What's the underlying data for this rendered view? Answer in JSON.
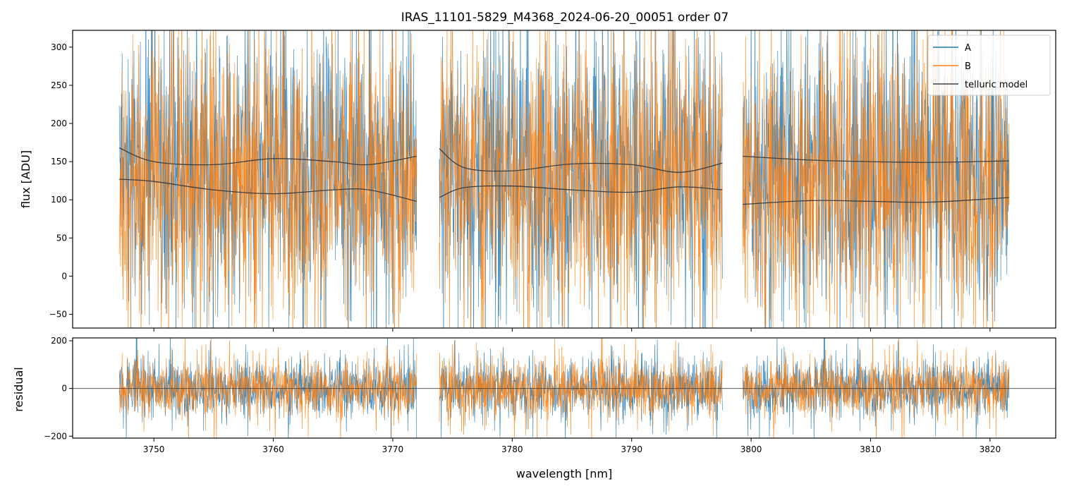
{
  "chart_data": [
    {
      "type": "line",
      "title": "IRAS_11101-5829_M4368_2024-06-20_00051  order 07",
      "xlabel": "",
      "ylabel": "flux [ADU]",
      "xlim": [
        3743.2,
        3825.5
      ],
      "ylim": [
        -68,
        322
      ],
      "yticks": [
        -50,
        0,
        50,
        100,
        150,
        200,
        250,
        300
      ],
      "xticks": [
        3750,
        3760,
        3770,
        3780,
        3790,
        3800,
        3810,
        3820
      ],
      "xticklabels_shown": false,
      "grid": false,
      "legend": {
        "placement": "top-right",
        "entries": [
          "A",
          "B",
          "telluric model"
        ]
      },
      "segments": [
        {
          "x_start": 3747.1,
          "x_end": 3772.0
        },
        {
          "x_start": 3773.9,
          "x_end": 3797.6
        },
        {
          "x_start": 3799.3,
          "x_end": 3821.6
        }
      ],
      "series": [
        {
          "name": "A",
          "color": "#1f77b4",
          "description_level": 140,
          "scatter_range": [
            -70,
            320
          ]
        },
        {
          "name": "B",
          "color": "#ff7f0e",
          "description_level": 130,
          "scatter_range": [
            -70,
            320
          ]
        },
        {
          "name": "telluric model",
          "color": "#404040",
          "curves": [
            {
              "x": [
                3747.1,
                3750,
                3755,
                3760,
                3765,
                3768,
                3772.0
              ],
              "y": [
                168,
                150,
                146,
                154,
                150,
                146,
                157
              ]
            },
            {
              "x": [
                3747.1,
                3750,
                3755,
                3760,
                3765,
                3768,
                3772.0
              ],
              "y": [
                127,
                124,
                113,
                108,
                113,
                113,
                98
              ]
            },
            {
              "x": [
                3773.9,
                3776,
                3780,
                3785,
                3790,
                3794,
                3797.6
              ],
              "y": [
                167,
                142,
                138,
                147,
                146,
                136,
                148
              ]
            },
            {
              "x": [
                3773.9,
                3776,
                3780,
                3785,
                3790,
                3794,
                3797.6
              ],
              "y": [
                103,
                116,
                118,
                113,
                110,
                117,
                113
              ]
            },
            {
              "x": [
                3799.3,
                3805,
                3810,
                3815,
                3821.6
              ],
              "y": [
                157,
                152,
                150,
                149,
                151
              ]
            },
            {
              "x": [
                3799.3,
                3805,
                3810,
                3815,
                3821.6
              ],
              "y": [
                94,
                99,
                98,
                97,
                103
              ]
            }
          ]
        }
      ]
    },
    {
      "type": "line",
      "title": "",
      "xlabel": "wavelength [nm]",
      "ylabel": "residual",
      "xlim": [
        3743.2,
        3825.5
      ],
      "ylim": [
        -208,
        212
      ],
      "yticks": [
        -200,
        0,
        200
      ],
      "xticks": [
        3750,
        3760,
        3770,
        3780,
        3790,
        3800,
        3810,
        3820
      ],
      "xticklabels": [
        "3750",
        "3760",
        "3770",
        "3780",
        "3790",
        "3800",
        "3810",
        "3820"
      ],
      "grid": false,
      "zero_line": true,
      "segments": [
        {
          "x_start": 3747.1,
          "x_end": 3772.0
        },
        {
          "x_start": 3773.9,
          "x_end": 3797.6
        },
        {
          "x_start": 3799.3,
          "x_end": 3821.6
        }
      ],
      "series": [
        {
          "name": "A",
          "color": "#1f77b4",
          "description_level": 0,
          "scatter_range": [
            -200,
            200
          ]
        },
        {
          "name": "B",
          "color": "#ff7f0e",
          "description_level": 0,
          "scatter_range": [
            -200,
            200
          ]
        }
      ]
    }
  ]
}
